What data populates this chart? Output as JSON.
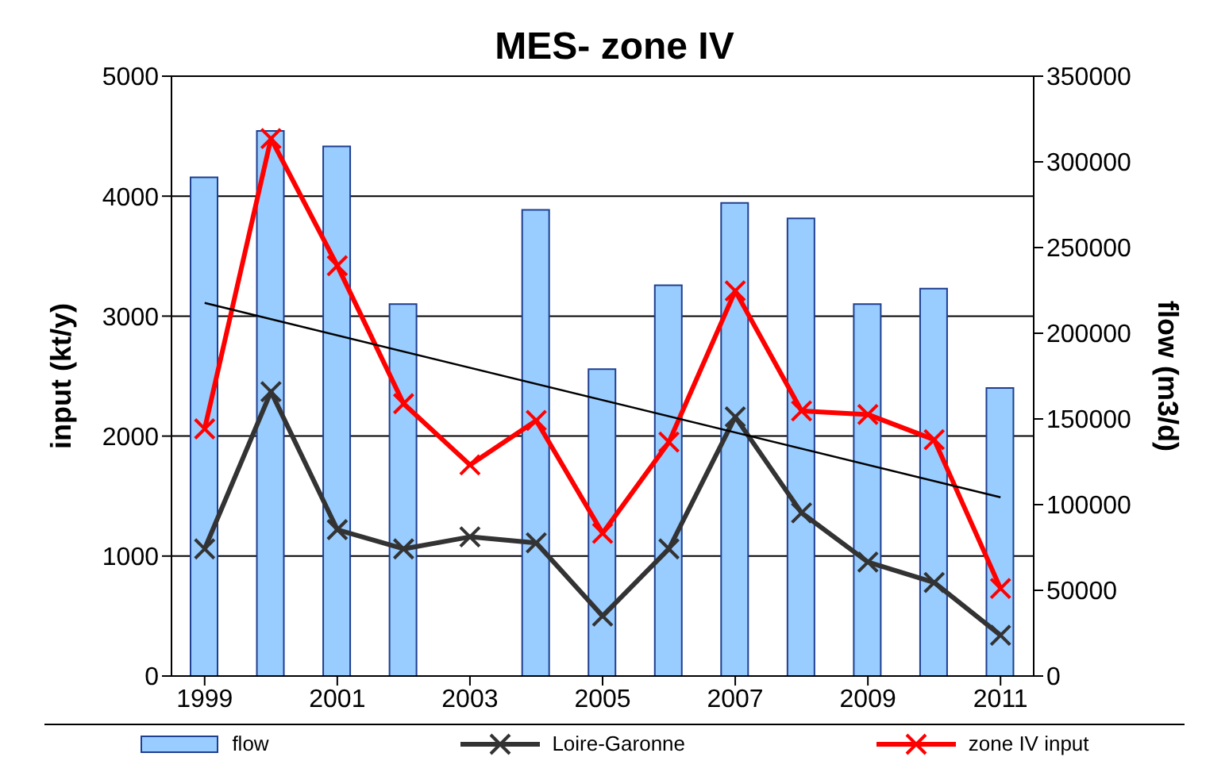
{
  "chart_data": {
    "type": "bar",
    "title": "MES- zone IV",
    "ylabel": "input (kt/y)",
    "y2label": "flow (m3/d)",
    "x": [
      1999,
      2000,
      2001,
      2002,
      2003,
      2004,
      2005,
      2006,
      2007,
      2008,
      2009,
      2010,
      2011
    ],
    "xlim": [
      1998.5,
      2011.5
    ],
    "xticks": [
      1999,
      2001,
      2003,
      2005,
      2007,
      2009,
      2011
    ],
    "ylim": [
      0,
      5000
    ],
    "yticks": [
      0,
      1000,
      2000,
      3000,
      4000,
      5000
    ],
    "y2lim": [
      0,
      350000
    ],
    "y2ticks": [
      0,
      50000,
      100000,
      150000,
      200000,
      250000,
      300000,
      350000
    ],
    "series": [
      {
        "name": "flow",
        "axis": "y2",
        "color": "#99ccff",
        "values": [
          291000,
          318000,
          309000,
          217000,
          null,
          272000,
          179000,
          228000,
          276000,
          267000,
          217000,
          226000,
          168000
        ]
      },
      {
        "name": "Loire-Garonne",
        "type": "line",
        "color": "#333333",
        "marker": "cross",
        "values": [
          1060,
          2370,
          1220,
          1060,
          1160,
          1110,
          500,
          1060,
          2160,
          1360,
          950,
          780,
          340
        ]
      },
      {
        "name": "zone IV input",
        "type": "line",
        "color": "#ff0000",
        "marker": "cross",
        "values": [
          2060,
          4480,
          3420,
          2270,
          1760,
          2130,
          1190,
          1950,
          3210,
          2210,
          2180,
          1970,
          730
        ]
      },
      {
        "type": "line",
        "color": "#000000",
        "marker": "none",
        "x": [
          1999,
          2011
        ],
        "values": [
          3110,
          1490
        ]
      }
    ],
    "grid": "y",
    "legend": "bottom"
  }
}
